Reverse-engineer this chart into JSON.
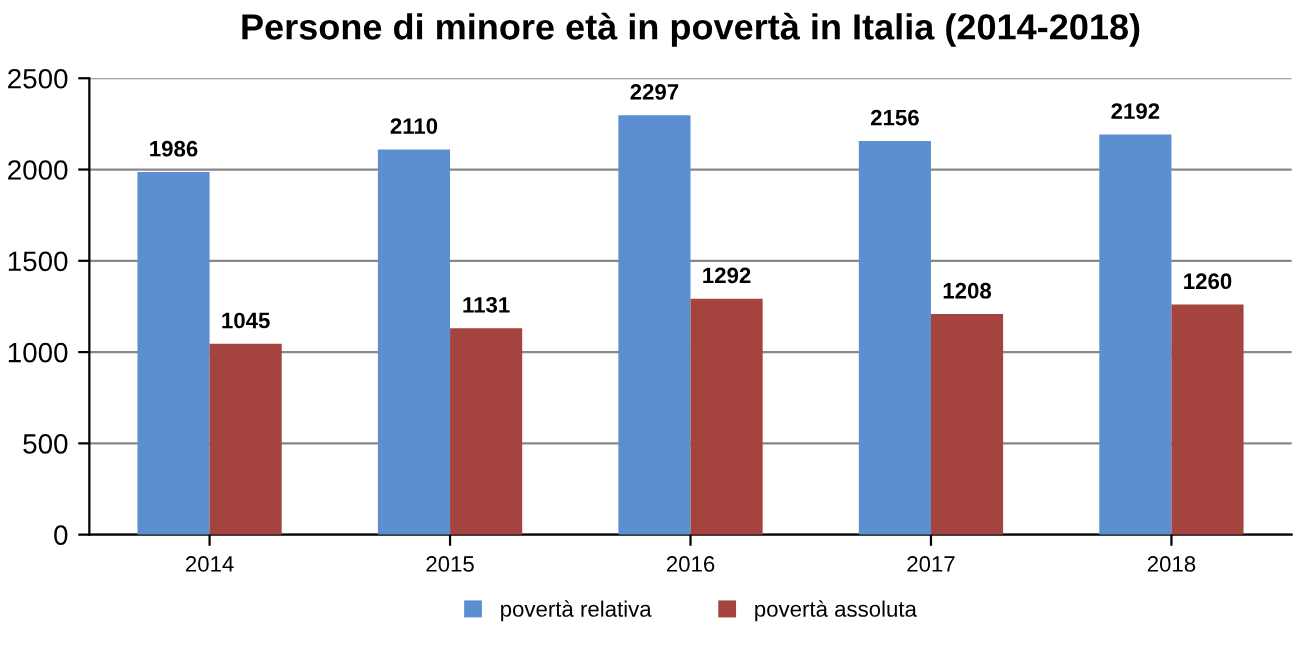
{
  "chart_data": {
    "type": "bar",
    "title": "Persone di minore età in povertà in Italia (2014-2018)",
    "categories": [
      "2014",
      "2015",
      "2016",
      "2017",
      "2018"
    ],
    "series": [
      {
        "name": "povertà relativa",
        "color": "#5b8fcf",
        "values": [
          1986,
          2110,
          2297,
          2156,
          2192
        ]
      },
      {
        "name": "povertà assoluta",
        "color": "#a5443f",
        "values": [
          1045,
          1131,
          1292,
          1208,
          1260
        ]
      }
    ],
    "ylim": [
      0,
      2500
    ],
    "yticks": [
      0,
      500,
      1000,
      1500,
      2000,
      2500
    ],
    "grid": "y",
    "legend": "bottom",
    "data_labels": true
  }
}
